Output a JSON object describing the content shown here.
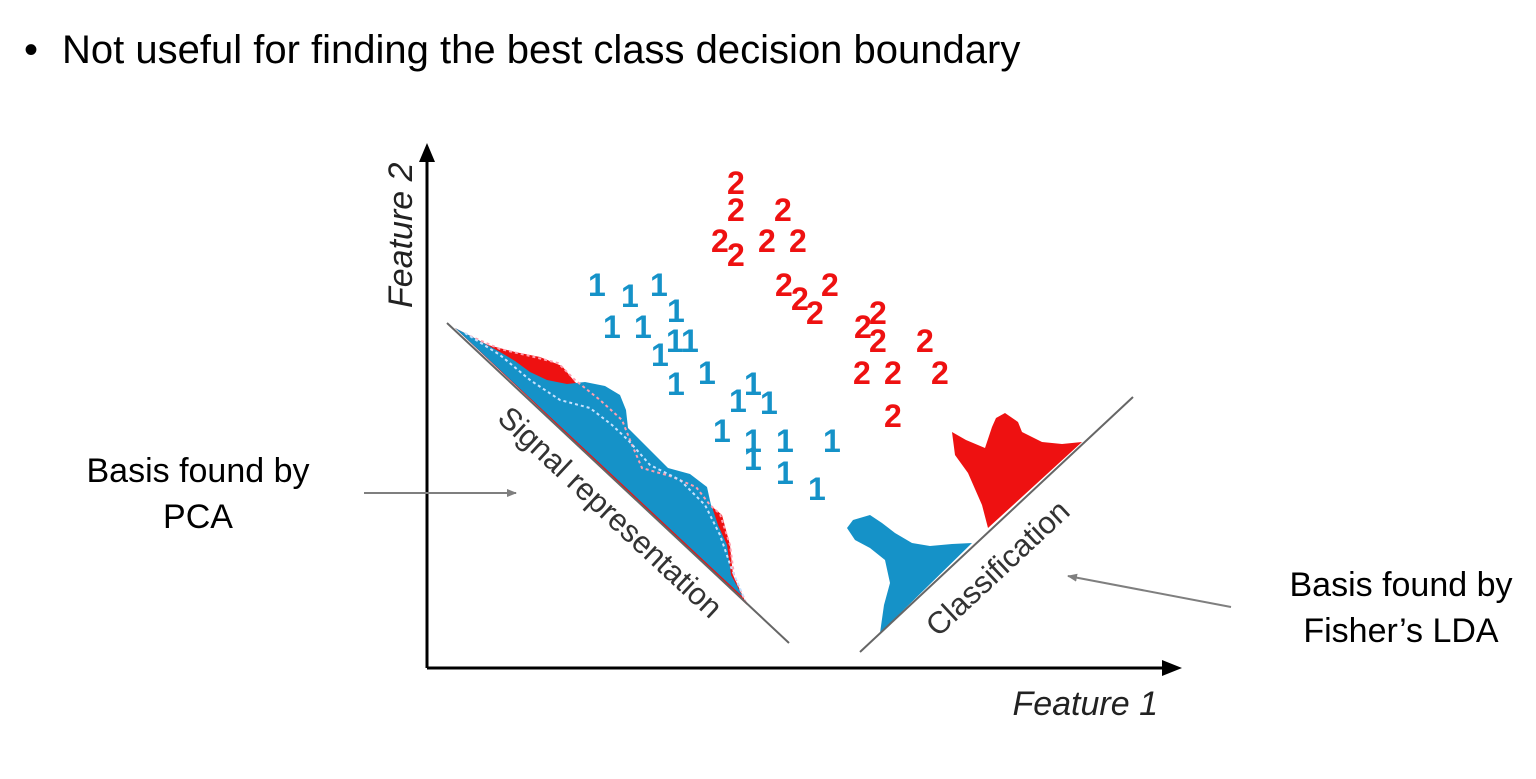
{
  "slide": {
    "bullet_symbol": "•",
    "bullet_text": "Not useful for finding the best class decision boundary"
  },
  "callouts": {
    "pca_line1": "Basis found by",
    "pca_line2": "PCA",
    "lda_line1": "Basis found by",
    "lda_line2": "Fisher’s LDA"
  },
  "diagram": {
    "x_axis_label": "Feature 1",
    "y_axis_label": "Feature 2",
    "pca_basis_label": "Signal representation",
    "lda_basis_label": "Classification",
    "class1_label": "1",
    "class2_label": "2",
    "colors": {
      "class1": "#1592c8",
      "class2": "#ee1111",
      "axis": "#000000",
      "basis_line": "#666666",
      "arrow": "#7f7f7f"
    }
  }
}
